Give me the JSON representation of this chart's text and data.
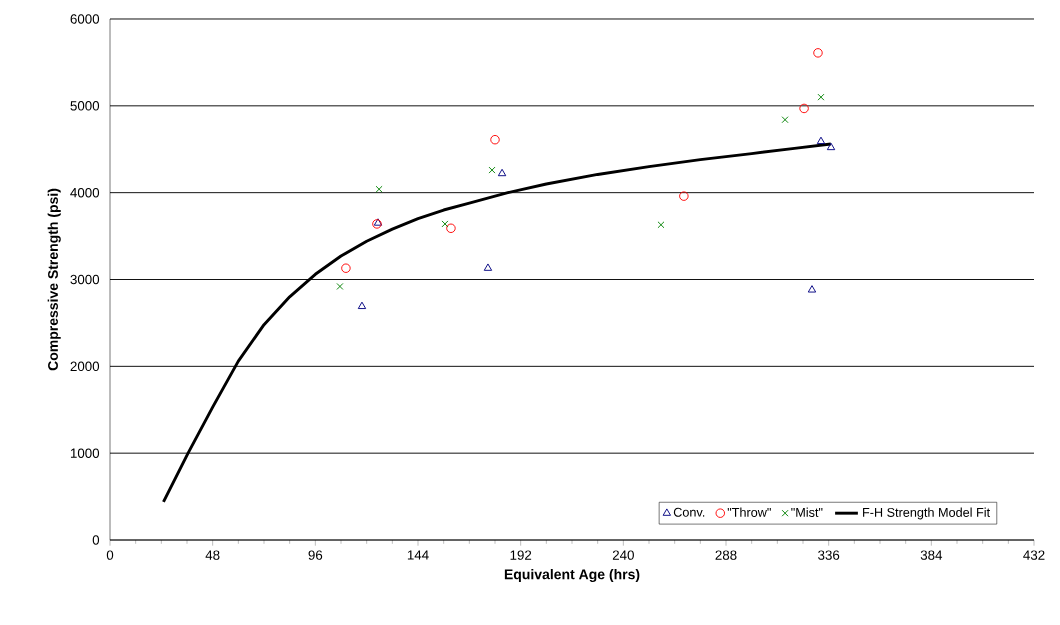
{
  "chart_data": {
    "type": "scatter",
    "xlabel": "Equivalent Age (hrs)",
    "ylabel": "Compressive Strength (psi)",
    "xlim": [
      0,
      432
    ],
    "ylim": [
      0,
      6000
    ],
    "xticks": [
      0,
      48,
      96,
      144,
      192,
      240,
      288,
      336,
      384,
      432
    ],
    "yticks": [
      0,
      1000,
      2000,
      3000,
      4000,
      5000,
      6000
    ],
    "grid": "y",
    "legend": "bottom right",
    "series": [
      {
        "name": "Conv.",
        "color": "#000080",
        "marker": "triangle",
        "x": [
          117.8,
          125.3,
          176.7,
          183.3,
          328.2,
          332.4,
          337.1
        ],
        "values": [
          2690,
          3650,
          3130,
          4220,
          2880,
          4590,
          4520
        ]
      },
      {
        "name": "\"Throw\"",
        "color": "#ff0000",
        "marker": "circle",
        "x": [
          110.3,
          124.8,
          159.4,
          180.0,
          268.3,
          324.5,
          331.0
        ],
        "values": [
          3130,
          3640,
          3590,
          4610,
          3960,
          4970,
          5610
        ]
      },
      {
        "name": "\"Mist\"",
        "color": "#008000",
        "marker": "cross",
        "x": [
          107.5,
          125.8,
          156.6,
          178.6,
          257.6,
          315.6,
          332.4
        ],
        "values": [
          2920,
          4040,
          3640,
          4260,
          3630,
          4840,
          5100
        ]
      },
      {
        "name": "F-H Strength Model Fit",
        "type": "line",
        "color": "#000000",
        "marker": "none",
        "line_style": "solid",
        "x": [
          25,
          36.5,
          48,
          60,
          72,
          84,
          96,
          108,
          120,
          132,
          144,
          156,
          168,
          186,
          204,
          228,
          252,
          276,
          300,
          320,
          337
        ],
        "values": [
          440,
          1000,
          1530,
          2060,
          2480,
          2800,
          3060,
          3270,
          3440,
          3580,
          3700,
          3800,
          3880,
          4000,
          4100,
          4210,
          4300,
          4380,
          4450,
          4510,
          4560
        ]
      }
    ]
  }
}
